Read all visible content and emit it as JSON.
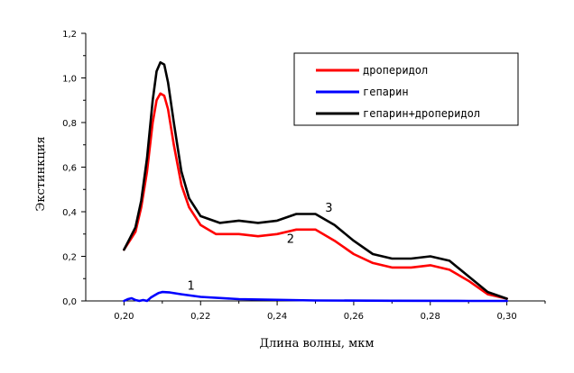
{
  "chart_data": {
    "type": "line",
    "xlabel": "Длина волны, мкм",
    "ylabel": "Экстинкция",
    "xlim": [
      0.19,
      0.31
    ],
    "ylim": [
      0.0,
      1.2
    ],
    "x_ticks": [
      "0,20",
      "0,22",
      "0,24",
      "0,26",
      "0,28",
      "0,30"
    ],
    "x_tick_values": [
      0.2,
      0.22,
      0.24,
      0.26,
      0.28,
      0.3
    ],
    "y_ticks": [
      "0,0",
      "0,2",
      "0,4",
      "0,6",
      "0,8",
      "1,0",
      "1,2"
    ],
    "y_tick_values": [
      0.0,
      0.2,
      0.4,
      0.6,
      0.8,
      1.0,
      1.2
    ],
    "grid": false,
    "legend_position": "top-right",
    "series": [
      {
        "name": "дроперидол",
        "color": "#ff0000",
        "x": [
          0.2,
          0.2015,
          0.203,
          0.2045,
          0.206,
          0.2075,
          0.2085,
          0.2095,
          0.2105,
          0.2115,
          0.213,
          0.215,
          0.217,
          0.22,
          0.224,
          0.23,
          0.235,
          0.24,
          0.245,
          0.25,
          0.255,
          0.26,
          0.265,
          0.27,
          0.275,
          0.28,
          0.285,
          0.29,
          0.295,
          0.3
        ],
        "y": [
          0.23,
          0.27,
          0.31,
          0.42,
          0.58,
          0.8,
          0.9,
          0.93,
          0.92,
          0.86,
          0.7,
          0.52,
          0.42,
          0.34,
          0.3,
          0.3,
          0.29,
          0.3,
          0.32,
          0.32,
          0.27,
          0.21,
          0.17,
          0.15,
          0.15,
          0.16,
          0.14,
          0.09,
          0.03,
          0.01
        ]
      },
      {
        "name": "гепарин",
        "color": "#0000ff",
        "x": [
          0.2,
          0.201,
          0.202,
          0.203,
          0.204,
          0.205,
          0.206,
          0.207,
          0.208,
          0.209,
          0.21,
          0.212,
          0.215,
          0.22,
          0.23,
          0.25,
          0.27,
          0.29,
          0.3
        ],
        "y": [
          0.0,
          0.008,
          0.012,
          0.004,
          0.0,
          0.004,
          0.0,
          0.015,
          0.025,
          0.035,
          0.04,
          0.038,
          0.03,
          0.018,
          0.008,
          0.002,
          0.001,
          0.0,
          0.0
        ]
      },
      {
        "name": "гепарин+дроперидол",
        "color": "#000000",
        "x": [
          0.2,
          0.2015,
          0.203,
          0.2045,
          0.206,
          0.2075,
          0.2085,
          0.2095,
          0.2105,
          0.2115,
          0.213,
          0.215,
          0.217,
          0.22,
          0.225,
          0.23,
          0.235,
          0.24,
          0.245,
          0.25,
          0.255,
          0.26,
          0.265,
          0.27,
          0.275,
          0.28,
          0.285,
          0.29,
          0.295,
          0.3
        ],
        "y": [
          0.23,
          0.28,
          0.33,
          0.45,
          0.64,
          0.9,
          1.03,
          1.07,
          1.06,
          0.98,
          0.8,
          0.58,
          0.46,
          0.38,
          0.35,
          0.36,
          0.35,
          0.36,
          0.39,
          0.39,
          0.34,
          0.27,
          0.21,
          0.19,
          0.19,
          0.2,
          0.18,
          0.11,
          0.04,
          0.01
        ]
      }
    ],
    "annotations": [
      {
        "text": "1",
        "x": 0.2175,
        "y": 0.05
      },
      {
        "text": "2",
        "x": 0.2435,
        "y": 0.26
      },
      {
        "text": "3",
        "x": 0.2535,
        "y": 0.4
      }
    ]
  }
}
